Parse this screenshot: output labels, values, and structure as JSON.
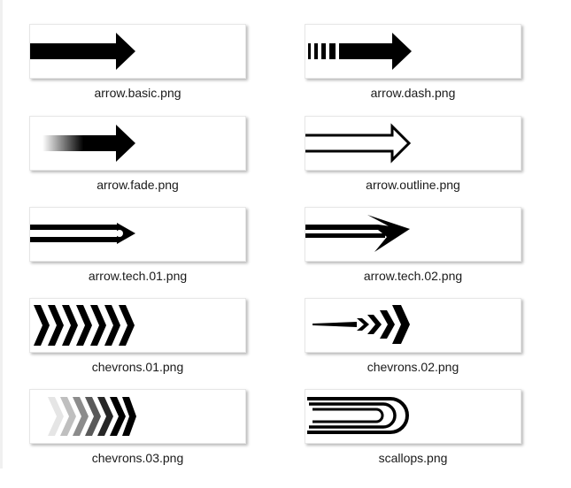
{
  "files": [
    {
      "name": "arrow.basic.png"
    },
    {
      "name": "arrow.dash.png"
    },
    {
      "name": "arrow.fade.png"
    },
    {
      "name": "arrow.outline.png"
    },
    {
      "name": "arrow.tech.01.png"
    },
    {
      "name": "arrow.tech.02.png"
    },
    {
      "name": "chevrons.01.png"
    },
    {
      "name": "chevrons.02.png"
    },
    {
      "name": "chevrons.03.png"
    },
    {
      "name": "scallops.png"
    }
  ]
}
